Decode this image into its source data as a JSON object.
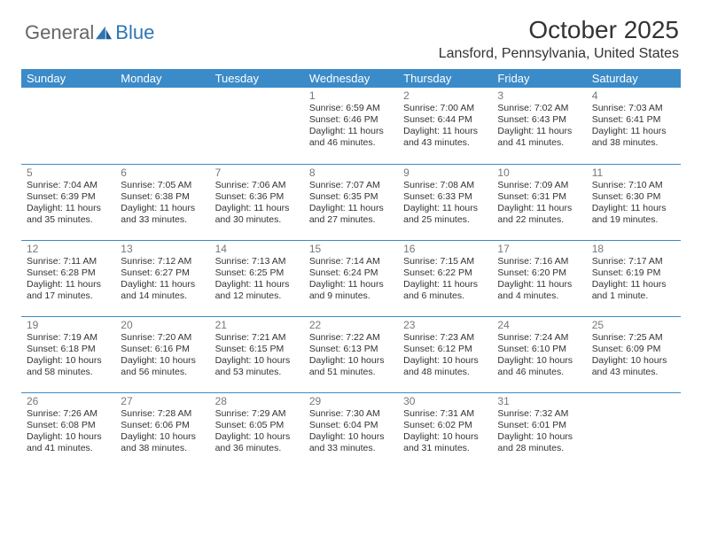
{
  "brand": {
    "part1": "General",
    "part2": "Blue"
  },
  "title": "October 2025",
  "location": "Lansford, Pennsylvania, United States",
  "colors": {
    "header_bg": "#3b8bc9",
    "header_text": "#ffffff",
    "brand_blue": "#2e75b6",
    "brand_gray": "#666666",
    "daynum": "#777777",
    "body_text": "#333333",
    "rule": "#3b8bc9",
    "page_bg": "#ffffff"
  },
  "typography": {
    "title_fontsize": 28,
    "location_fontsize": 16,
    "weekday_fontsize": 13,
    "daynum_fontsize": 12,
    "cell_fontsize": 10.5,
    "font_family": "Arial"
  },
  "layout": {
    "columns": 7,
    "rows": 5,
    "start_day_index": 3
  },
  "weekdays": [
    "Sunday",
    "Monday",
    "Tuesday",
    "Wednesday",
    "Thursday",
    "Friday",
    "Saturday"
  ],
  "days": [
    {
      "n": 1,
      "sunrise": "6:59 AM",
      "sunset": "6:46 PM",
      "daylight": "11 hours and 46 minutes."
    },
    {
      "n": 2,
      "sunrise": "7:00 AM",
      "sunset": "6:44 PM",
      "daylight": "11 hours and 43 minutes."
    },
    {
      "n": 3,
      "sunrise": "7:02 AM",
      "sunset": "6:43 PM",
      "daylight": "11 hours and 41 minutes."
    },
    {
      "n": 4,
      "sunrise": "7:03 AM",
      "sunset": "6:41 PM",
      "daylight": "11 hours and 38 minutes."
    },
    {
      "n": 5,
      "sunrise": "7:04 AM",
      "sunset": "6:39 PM",
      "daylight": "11 hours and 35 minutes."
    },
    {
      "n": 6,
      "sunrise": "7:05 AM",
      "sunset": "6:38 PM",
      "daylight": "11 hours and 33 minutes."
    },
    {
      "n": 7,
      "sunrise": "7:06 AM",
      "sunset": "6:36 PM",
      "daylight": "11 hours and 30 minutes."
    },
    {
      "n": 8,
      "sunrise": "7:07 AM",
      "sunset": "6:35 PM",
      "daylight": "11 hours and 27 minutes."
    },
    {
      "n": 9,
      "sunrise": "7:08 AM",
      "sunset": "6:33 PM",
      "daylight": "11 hours and 25 minutes."
    },
    {
      "n": 10,
      "sunrise": "7:09 AM",
      "sunset": "6:31 PM",
      "daylight": "11 hours and 22 minutes."
    },
    {
      "n": 11,
      "sunrise": "7:10 AM",
      "sunset": "6:30 PM",
      "daylight": "11 hours and 19 minutes."
    },
    {
      "n": 12,
      "sunrise": "7:11 AM",
      "sunset": "6:28 PM",
      "daylight": "11 hours and 17 minutes."
    },
    {
      "n": 13,
      "sunrise": "7:12 AM",
      "sunset": "6:27 PM",
      "daylight": "11 hours and 14 minutes."
    },
    {
      "n": 14,
      "sunrise": "7:13 AM",
      "sunset": "6:25 PM",
      "daylight": "11 hours and 12 minutes."
    },
    {
      "n": 15,
      "sunrise": "7:14 AM",
      "sunset": "6:24 PM",
      "daylight": "11 hours and 9 minutes."
    },
    {
      "n": 16,
      "sunrise": "7:15 AM",
      "sunset": "6:22 PM",
      "daylight": "11 hours and 6 minutes."
    },
    {
      "n": 17,
      "sunrise": "7:16 AM",
      "sunset": "6:20 PM",
      "daylight": "11 hours and 4 minutes."
    },
    {
      "n": 18,
      "sunrise": "7:17 AM",
      "sunset": "6:19 PM",
      "daylight": "11 hours and 1 minute."
    },
    {
      "n": 19,
      "sunrise": "7:19 AM",
      "sunset": "6:18 PM",
      "daylight": "10 hours and 58 minutes."
    },
    {
      "n": 20,
      "sunrise": "7:20 AM",
      "sunset": "6:16 PM",
      "daylight": "10 hours and 56 minutes."
    },
    {
      "n": 21,
      "sunrise": "7:21 AM",
      "sunset": "6:15 PM",
      "daylight": "10 hours and 53 minutes."
    },
    {
      "n": 22,
      "sunrise": "7:22 AM",
      "sunset": "6:13 PM",
      "daylight": "10 hours and 51 minutes."
    },
    {
      "n": 23,
      "sunrise": "7:23 AM",
      "sunset": "6:12 PM",
      "daylight": "10 hours and 48 minutes."
    },
    {
      "n": 24,
      "sunrise": "7:24 AM",
      "sunset": "6:10 PM",
      "daylight": "10 hours and 46 minutes."
    },
    {
      "n": 25,
      "sunrise": "7:25 AM",
      "sunset": "6:09 PM",
      "daylight": "10 hours and 43 minutes."
    },
    {
      "n": 26,
      "sunrise": "7:26 AM",
      "sunset": "6:08 PM",
      "daylight": "10 hours and 41 minutes."
    },
    {
      "n": 27,
      "sunrise": "7:28 AM",
      "sunset": "6:06 PM",
      "daylight": "10 hours and 38 minutes."
    },
    {
      "n": 28,
      "sunrise": "7:29 AM",
      "sunset": "6:05 PM",
      "daylight": "10 hours and 36 minutes."
    },
    {
      "n": 29,
      "sunrise": "7:30 AM",
      "sunset": "6:04 PM",
      "daylight": "10 hours and 33 minutes."
    },
    {
      "n": 30,
      "sunrise": "7:31 AM",
      "sunset": "6:02 PM",
      "daylight": "10 hours and 31 minutes."
    },
    {
      "n": 31,
      "sunrise": "7:32 AM",
      "sunset": "6:01 PM",
      "daylight": "10 hours and 28 minutes."
    }
  ],
  "labels": {
    "sunrise": "Sunrise:",
    "sunset": "Sunset:",
    "daylight": "Daylight:"
  }
}
